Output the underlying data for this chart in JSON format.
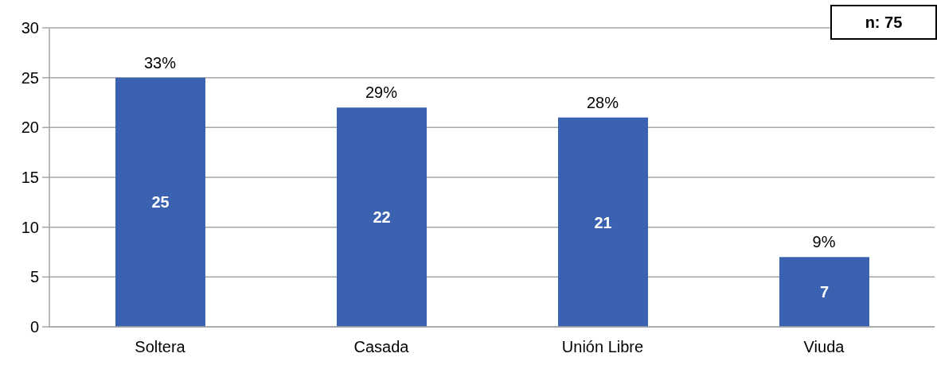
{
  "chart_data": {
    "type": "bar",
    "categories": [
      "Soltera",
      "Casada",
      "Unión Libre",
      "Viuda"
    ],
    "values": [
      25,
      22,
      21,
      7
    ],
    "color": "#3a62b0",
    "ylim": [
      0,
      30
    ],
    "yticks": [
      0,
      5,
      10,
      15,
      20,
      25,
      30
    ],
    "grid": "y",
    "data_labels": true,
    "annotations": [
      {
        "text": "33%",
        "x": "Soltera",
        "y": 25
      },
      {
        "text": "29%",
        "x": "Casada",
        "y": 22
      },
      {
        "text": "28%",
        "x": "Unión Libre",
        "y": 21
      },
      {
        "text": "9%",
        "x": "Viuda",
        "y": 7
      },
      "n: 75"
    ]
  }
}
